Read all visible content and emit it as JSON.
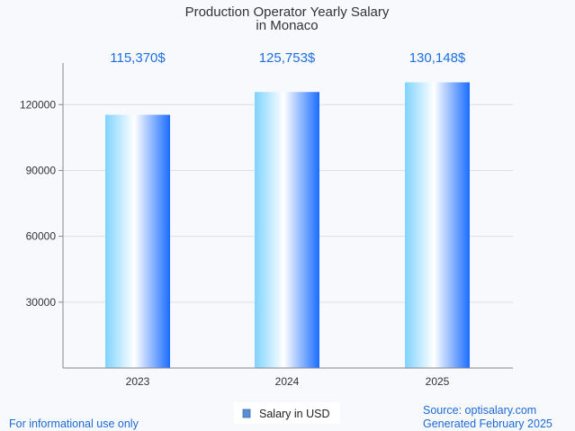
{
  "chart_data": {
    "type": "bar",
    "title_lines": [
      "Production Operator Yearly Salary",
      "in Monaco"
    ],
    "categories": [
      "2023",
      "2024",
      "2025"
    ],
    "series": [
      {
        "name": "Salary in USD",
        "values": [
          115370,
          125753,
          130148
        ]
      }
    ],
    "data_labels": [
      "115,370$",
      "125,753$",
      "130,148$"
    ],
    "yticks": [
      30000,
      60000,
      90000,
      120000
    ],
    "ylim": [
      0,
      140000
    ],
    "grid": true,
    "legend_position": "bottom-center"
  },
  "footer": {
    "left": "For informational use only",
    "source": "Source: optisalary.com",
    "generated": "Generated February 2025"
  },
  "colors": {
    "bar_light": "#7fd3ff",
    "bar_mid": "#ffffff",
    "bar_dark": "#1a6dff",
    "accent_text": "#1c6fe0",
    "grid": "#dedede",
    "axis": "#888888"
  }
}
